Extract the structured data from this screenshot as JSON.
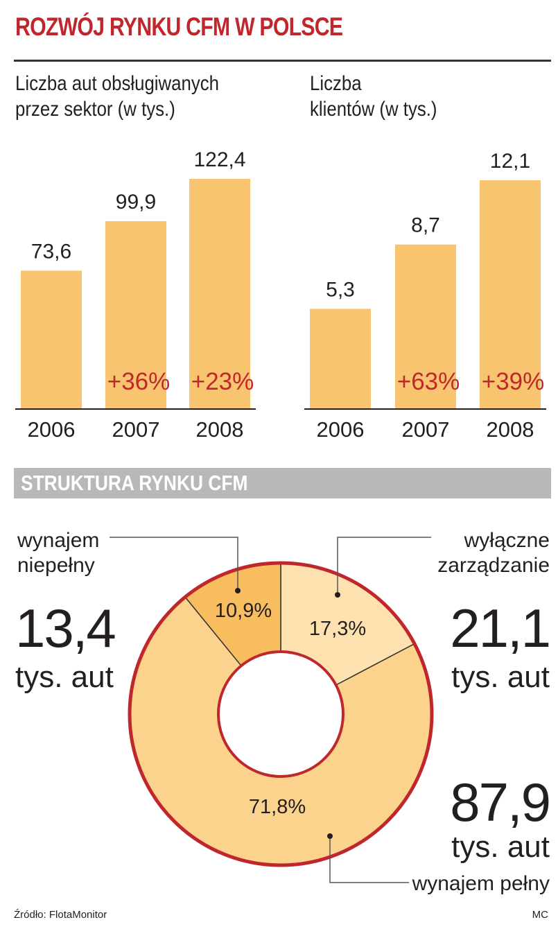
{
  "title": "ROZWÓJ RYNKU CFM W POLSCE",
  "section_title": "STRUKTURA RYNKU CFM",
  "source": "Źródło: FlotaMonitor",
  "author": "MC",
  "colors": {
    "title_red": "#c0272d",
    "bar": "#f9c46f",
    "donut_dark": "#f7bd5f",
    "donut_light": "#fde2b0",
    "donut_main": "#fcd38c",
    "ring": "#c0272d",
    "section_bar": "#b8b8b8"
  },
  "chart_data": [
    {
      "type": "bar",
      "title": "Liczba aut obsługiwanych przez sektor (w tys.)",
      "title_lines": [
        "Liczba aut obsługiwanych",
        "przez sektor (w tys.)"
      ],
      "categories": [
        "2006",
        "2007",
        "2008"
      ],
      "values": [
        73.6,
        99.9,
        122.4
      ],
      "value_labels": [
        "73,6",
        "99,9",
        "122,4"
      ],
      "growth_labels": [
        "",
        "+36%",
        "+23%"
      ]
    },
    {
      "type": "bar",
      "title": "Liczba klientów (w tys.)",
      "title_lines": [
        "Liczba",
        "klientów (w tys.)"
      ],
      "categories": [
        "2006",
        "2007",
        "2008"
      ],
      "values": [
        5.3,
        8.7,
        12.1
      ],
      "value_labels": [
        "5,3",
        "8,7",
        "12,1"
      ],
      "growth_labels": [
        "",
        "+63%",
        "+39%"
      ]
    },
    {
      "type": "pie",
      "title": "STRUKTURA RYNKU CFM",
      "slices": [
        {
          "name": "wyłączne zarządzanie",
          "label_lines": [
            "wyłączne",
            "zarządzanie"
          ],
          "value": 17.3,
          "pct_label": "17,3%",
          "count": "21,1",
          "unit": "tys. aut"
        },
        {
          "name": "wynajem pełny",
          "label_lines": [
            "wynajem pełny"
          ],
          "value": 71.8,
          "pct_label": "71,8%",
          "count": "87,9",
          "unit": "tys. aut"
        },
        {
          "name": "wynajem niepełny",
          "label_lines": [
            "wynajem",
            "niepełny"
          ],
          "value": 10.9,
          "pct_label": "10,9%",
          "count": "13,4",
          "unit": "tys. aut"
        }
      ]
    }
  ]
}
